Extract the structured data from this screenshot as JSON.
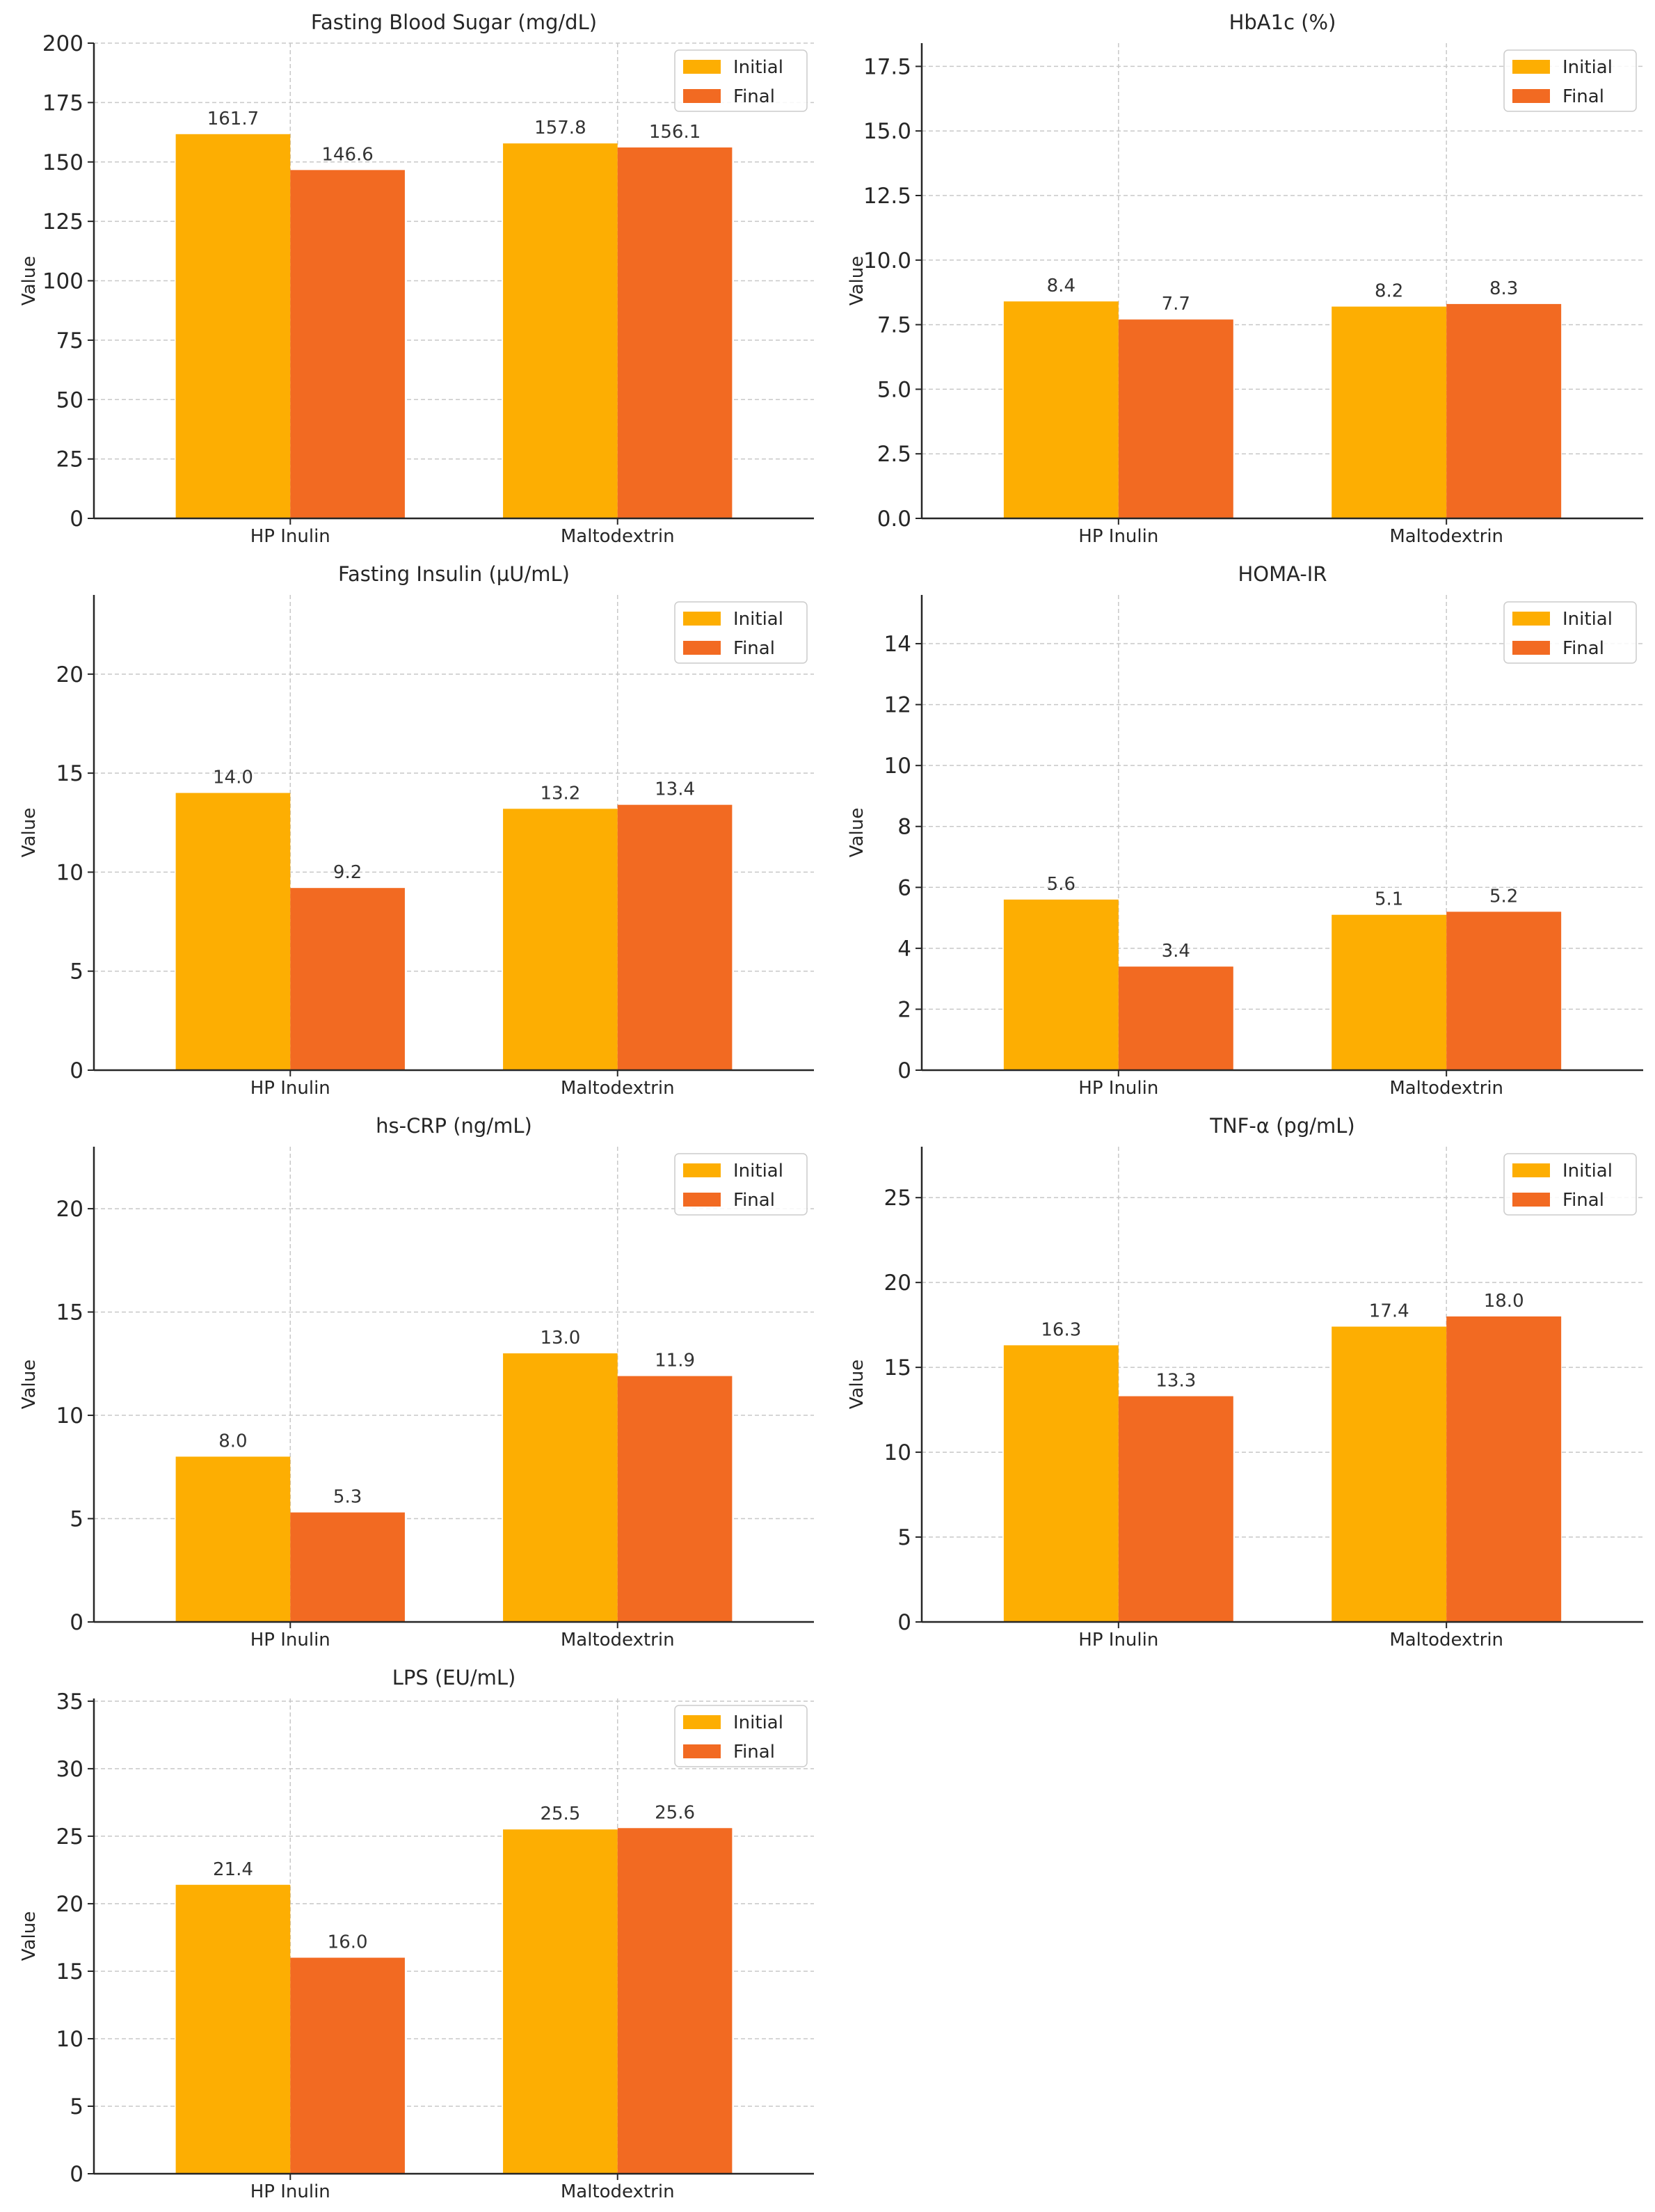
{
  "colors": {
    "initial": "#FDAE02",
    "final": "#F26A22"
  },
  "chart_data": [
    {
      "type": "bar",
      "title": "Fasting Blood Sugar (mg/dL)",
      "ylabel": "Value",
      "categories": [
        "HP Inulin",
        "Maltodextrin"
      ],
      "series": [
        {
          "name": "Initial",
          "values": [
            161.7,
            157.8
          ]
        },
        {
          "name": "Final",
          "values": [
            146.6,
            156.1
          ]
        }
      ],
      "ylim": [
        0,
        200
      ],
      "yticks": [
        0,
        25,
        50,
        75,
        100,
        125,
        150,
        175,
        200
      ],
      "ytick_labels": [
        "0",
        "25",
        "50",
        "75",
        "100",
        "125",
        "150",
        "175",
        "200"
      ],
      "data_labels": [
        [
          "161.7",
          "157.8"
        ],
        [
          "146.6",
          "156.1"
        ]
      ],
      "legend": "top-right",
      "grid": true
    },
    {
      "type": "bar",
      "title": "HbA1c (%)",
      "ylabel": "Value",
      "categories": [
        "HP Inulin",
        "Maltodextrin"
      ],
      "series": [
        {
          "name": "Initial",
          "values": [
            8.4,
            8.2
          ]
        },
        {
          "name": "Final",
          "values": [
            7.7,
            8.3
          ]
        }
      ],
      "ylim": [
        0,
        18.4
      ],
      "yticks": [
        0,
        2.5,
        5,
        7.5,
        10,
        12.5,
        15,
        17.5
      ],
      "ytick_labels": [
        "0.0",
        "2.5",
        "5.0",
        "7.5",
        "10.0",
        "12.5",
        "15.0",
        "17.5"
      ],
      "data_labels": [
        [
          "8.4",
          "8.2"
        ],
        [
          "7.7",
          "8.3"
        ]
      ],
      "legend": "top-right",
      "grid": true
    },
    {
      "type": "bar",
      "title": "Fasting Insulin (µU/mL)",
      "ylabel": "Value",
      "categories": [
        "HP Inulin",
        "Maltodextrin"
      ],
      "series": [
        {
          "name": "Initial",
          "values": [
            14.0,
            13.2
          ]
        },
        {
          "name": "Final",
          "values": [
            9.2,
            13.4
          ]
        }
      ],
      "ylim": [
        0,
        24
      ],
      "yticks": [
        0,
        5,
        10,
        15,
        20
      ],
      "ytick_labels": [
        "0",
        "5",
        "10",
        "15",
        "20"
      ],
      "data_labels": [
        [
          "14.0",
          "13.2"
        ],
        [
          "9.2",
          "13.4"
        ]
      ],
      "legend": "top-right",
      "grid": true
    },
    {
      "type": "bar",
      "title": "HOMA-IR",
      "ylabel": "Value",
      "categories": [
        "HP Inulin",
        "Maltodextrin"
      ],
      "series": [
        {
          "name": "Initial",
          "values": [
            5.6,
            5.1
          ]
        },
        {
          "name": "Final",
          "values": [
            3.4,
            5.2
          ]
        }
      ],
      "ylim": [
        0,
        15.6
      ],
      "yticks": [
        0,
        2,
        4,
        6,
        8,
        10,
        12,
        14
      ],
      "ytick_labels": [
        "0",
        "2",
        "4",
        "6",
        "8",
        "10",
        "12",
        "14"
      ],
      "data_labels": [
        [
          "5.6",
          "5.1"
        ],
        [
          "3.4",
          "5.2"
        ]
      ],
      "legend": "top-right",
      "grid": true
    },
    {
      "type": "bar",
      "title": "hs-CRP (ng/mL)",
      "ylabel": "Value",
      "categories": [
        "HP Inulin",
        "Maltodextrin"
      ],
      "series": [
        {
          "name": "Initial",
          "values": [
            8.0,
            13.0
          ]
        },
        {
          "name": "Final",
          "values": [
            5.3,
            11.9
          ]
        }
      ],
      "ylim": [
        0,
        23
      ],
      "yticks": [
        0,
        5,
        10,
        15,
        20
      ],
      "ytick_labels": [
        "0",
        "5",
        "10",
        "15",
        "20"
      ],
      "data_labels": [
        [
          "8.0",
          "13.0"
        ],
        [
          "5.3",
          "11.9"
        ]
      ],
      "legend": "top-right",
      "grid": true
    },
    {
      "type": "bar",
      "title": "TNF-α (pg/mL)",
      "ylabel": "Value",
      "categories": [
        "HP Inulin",
        "Maltodextrin"
      ],
      "series": [
        {
          "name": "Initial",
          "values": [
            16.3,
            17.4
          ]
        },
        {
          "name": "Final",
          "values": [
            13.3,
            18.0
          ]
        }
      ],
      "ylim": [
        0,
        28
      ],
      "yticks": [
        0,
        5,
        10,
        15,
        20,
        25
      ],
      "ytick_labels": [
        "0",
        "5",
        "10",
        "15",
        "20",
        "25"
      ],
      "data_labels": [
        [
          "16.3",
          "17.4"
        ],
        [
          "13.3",
          "18.0"
        ]
      ],
      "legend": "top-right",
      "grid": true
    },
    {
      "type": "bar",
      "title": "LPS (EU/mL)",
      "ylabel": "Value",
      "categories": [
        "HP Inulin",
        "Maltodextrin"
      ],
      "series": [
        {
          "name": "Initial",
          "values": [
            21.4,
            25.5
          ]
        },
        {
          "name": "Final",
          "values": [
            16.0,
            25.6
          ]
        }
      ],
      "ylim": [
        0,
        35.2
      ],
      "yticks": [
        0,
        5,
        10,
        15,
        20,
        25,
        30,
        35
      ],
      "ytick_labels": [
        "0",
        "5",
        "10",
        "15",
        "20",
        "25",
        "30",
        "35"
      ],
      "data_labels": [
        [
          "21.4",
          "25.5"
        ],
        [
          "16.0",
          "25.6"
        ]
      ],
      "legend": "top-right",
      "grid": true
    }
  ]
}
